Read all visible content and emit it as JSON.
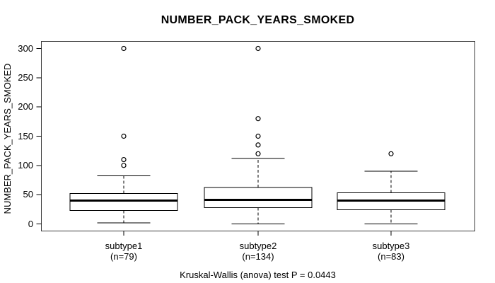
{
  "chart_data": {
    "type": "boxplot",
    "title": "NUMBER_PACK_YEARS_SMOKED",
    "ylabel": "NUMBER_PACK_YEARS_SMOKED",
    "xlabel": "",
    "ylim": [
      0,
      300
    ],
    "yticks": [
      0,
      50,
      100,
      150,
      200,
      250,
      300
    ],
    "grid": false,
    "annotation": "Kruskal-Wallis (anova) test P = 0.0443",
    "test_name": "Kruskal-Wallis (anova)",
    "p_value": 0.0443,
    "groups": [
      {
        "label": "subtype1",
        "n_label": "(n=79)",
        "n": 79,
        "stats": {
          "whisker_low": 2,
          "q1": 23,
          "median": 40,
          "q3": 52,
          "whisker_high": 82
        },
        "outliers": [
          100,
          110,
          150,
          300
        ]
      },
      {
        "label": "subtype2",
        "n_label": "(n=134)",
        "n": 134,
        "stats": {
          "whisker_low": 0,
          "q1": 28,
          "median": 41,
          "q3": 62,
          "whisker_high": 112
        },
        "outliers": [
          120,
          135,
          150,
          180,
          300
        ]
      },
      {
        "label": "subtype3",
        "n_label": "(n=83)",
        "n": 83,
        "stats": {
          "whisker_low": 0,
          "q1": 24,
          "median": 40,
          "q3": 53,
          "whisker_high": 90
        },
        "outliers": [
          120
        ]
      }
    ],
    "colors": {
      "stroke": "#000000",
      "box_fill": "#ffffff",
      "frame": "#3a3a3a",
      "background": "#ffffff"
    }
  }
}
